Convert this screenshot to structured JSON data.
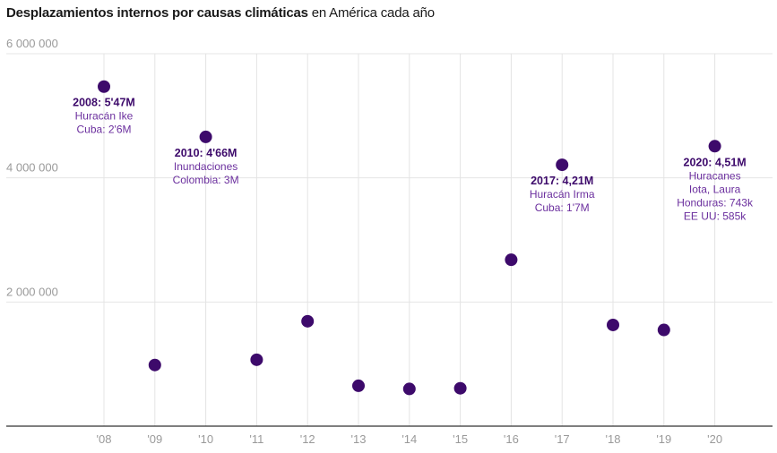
{
  "title": {
    "bold": "Desplazamientos internos por causas climáticas",
    "rest": " en América cada año"
  },
  "colors": {
    "point": "#3d0a6b",
    "annotation_head": "#3d0a6b",
    "annotation_text": "#6b2f9e",
    "grid": "#e4e4e4",
    "axis": "#333333",
    "tick": "#9a9a9a"
  },
  "chart_data": {
    "type": "scatter",
    "title": "Desplazamientos internos por causas climáticas en América cada año",
    "xlabel": "",
    "ylabel": "",
    "x": [
      "'08",
      "'09",
      "'10",
      "'11",
      "'12",
      "'13",
      "'14",
      "'15",
      "'16",
      "'17",
      "'18",
      "'19",
      "'20"
    ],
    "values": [
      5470000,
      985000,
      4660000,
      1070000,
      1690000,
      650000,
      600000,
      610000,
      2680000,
      4210000,
      1630000,
      1550000,
      4510000
    ],
    "ylim": [
      0,
      6000000
    ],
    "yticks": [
      {
        "value": 2000000,
        "label": "2 000 000"
      },
      {
        "value": 4000000,
        "label": "4 000 000"
      },
      {
        "value": 6000000,
        "label": "6 000 000"
      }
    ],
    "grid": true,
    "annotations": [
      {
        "index": 0,
        "head": "2008: 5'47M",
        "lines": [
          "Huracán Ike",
          "Cuba: 2'6M"
        ]
      },
      {
        "index": 2,
        "head": "2010: 4'66M",
        "lines": [
          "Inundaciones",
          "Colombia: 3M"
        ]
      },
      {
        "index": 9,
        "head": "2017: 4,21M",
        "lines": [
          "Huracán Irma",
          "Cuba: 1'7M"
        ]
      },
      {
        "index": 12,
        "head": "2020: 4,51M",
        "lines": [
          "Huracanes",
          "Iota, Laura",
          "Honduras: 743k",
          "EE UU: 585k"
        ]
      }
    ]
  }
}
